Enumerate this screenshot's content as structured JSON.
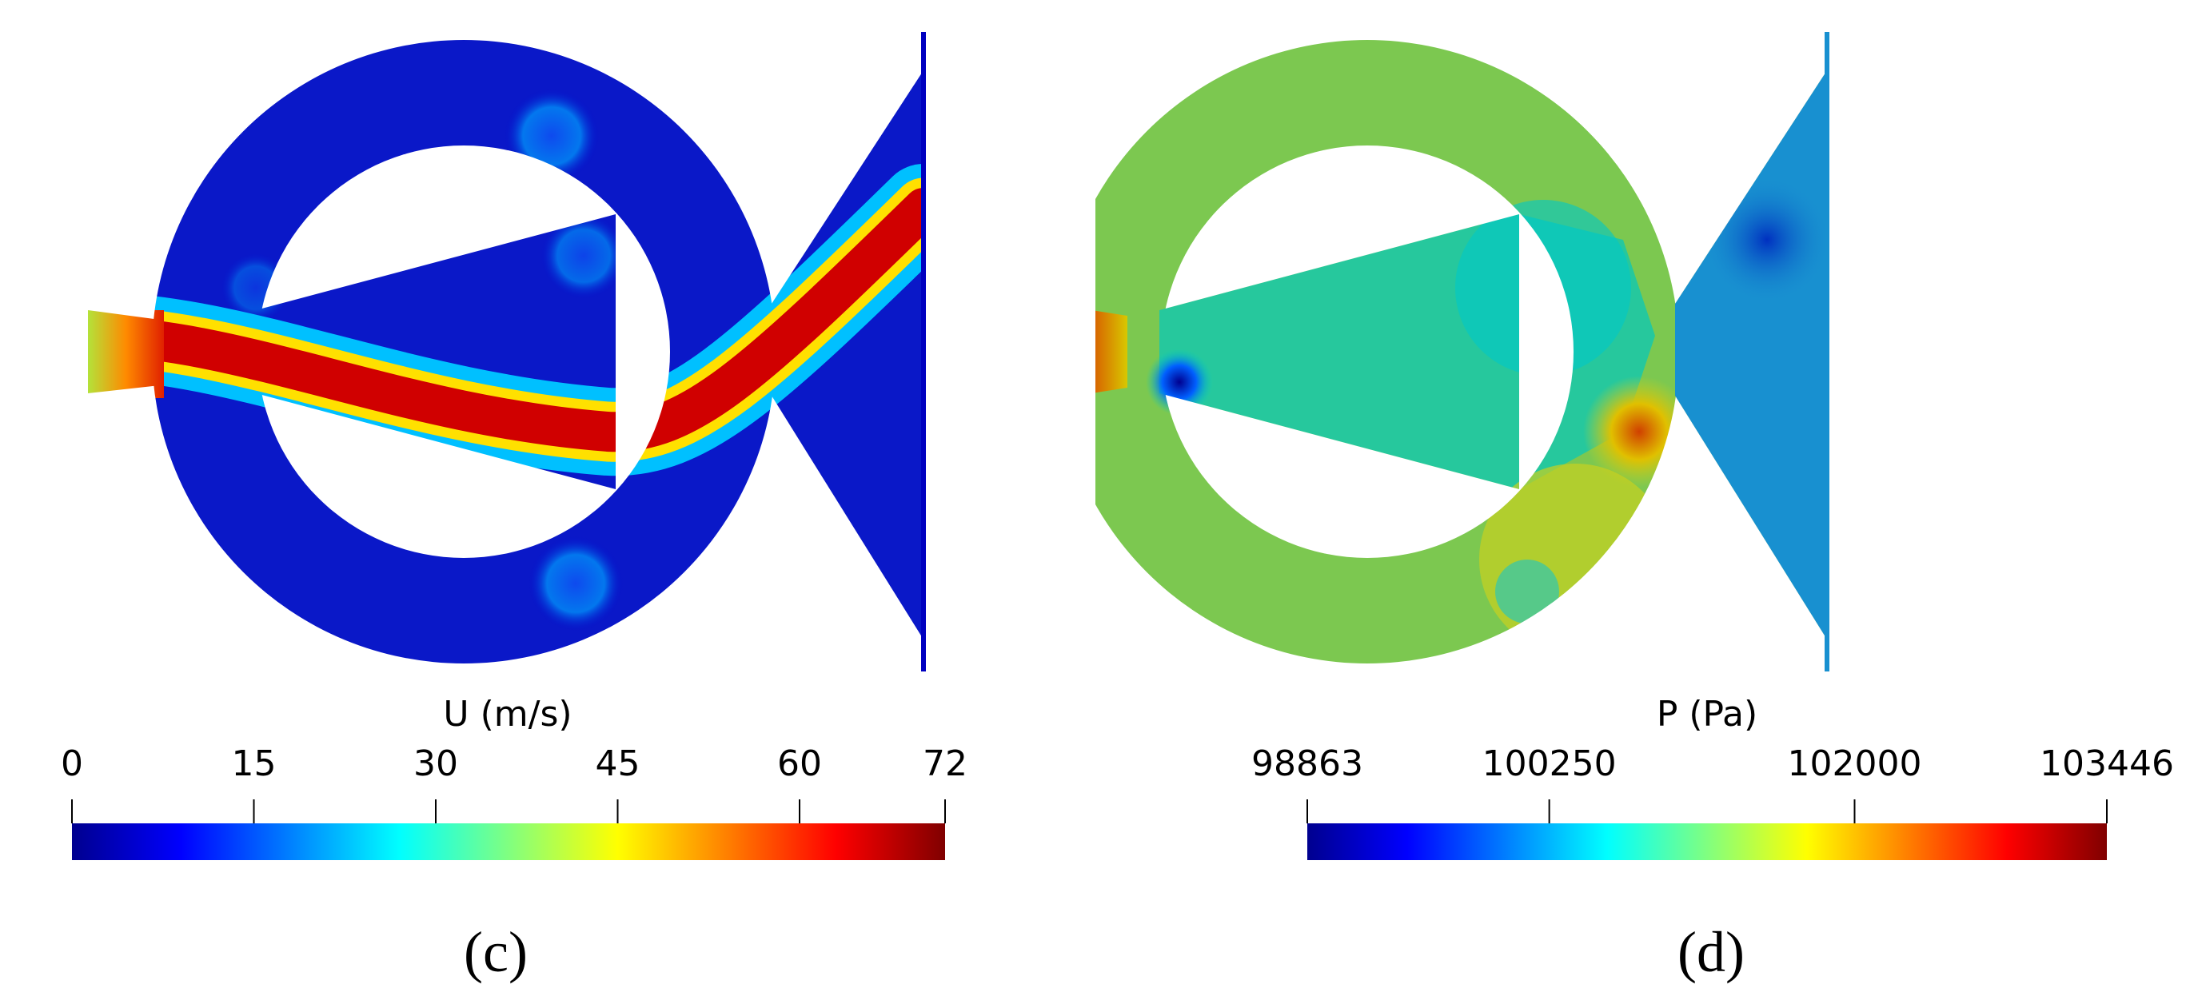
{
  "panels": [
    {
      "id": "c",
      "caption": "(c)",
      "colorbar": {
        "title": "U (m/s)",
        "min": 0,
        "max": 72,
        "ticks": [
          0,
          15,
          30,
          45,
          60,
          72
        ],
        "tick_labels": [
          "0",
          "15",
          "30",
          "45",
          "60",
          "72"
        ]
      }
    },
    {
      "id": "d",
      "caption": "(d)",
      "colorbar": {
        "title": "P (Pa)",
        "min": 98863,
        "max": 103446,
        "ticks": [
          98863,
          100250,
          102000,
          103446
        ],
        "tick_labels": [
          "98863",
          "100250",
          "102000",
          "103446"
        ]
      }
    }
  ],
  "colormap": [
    "#00008f",
    "#0000ff",
    "#0080ff",
    "#00ffff",
    "#80ff80",
    "#ffff00",
    "#ff8000",
    "#ff0000",
    "#800000"
  ]
}
